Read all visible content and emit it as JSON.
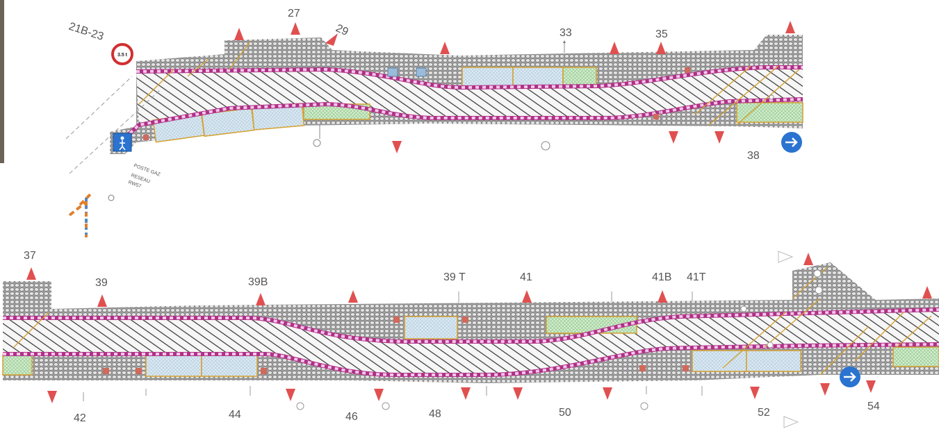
{
  "plan": {
    "top_numbers": [
      "27",
      "29",
      "33",
      "35",
      "21B-23",
      "38"
    ],
    "bottom_numbers": [
      "37",
      "39",
      "39B",
      "39 T",
      "41",
      "41B",
      "41T",
      "42",
      "44",
      "46",
      "48",
      "50",
      "52",
      "54"
    ],
    "speed_sign_text": "3.5 t",
    "gas_label": "POSTE GAZ",
    "network_label": "RESEAU",
    "network_code": "RW57",
    "icons": [
      "triangle-marker-icon",
      "direction-arrow-icon",
      "weight-limit-sign-icon",
      "pedestrian-sign-icon"
    ],
    "colors": {
      "triangle": "#e05050",
      "curb_dash": "#e080c8",
      "curb_base": "#b03088",
      "kerb_line": "#d4a030",
      "arrow_sign": "#2a73d0",
      "green_zone": "#a8d8a0",
      "blue_zone": "#bcd8ea"
    }
  }
}
